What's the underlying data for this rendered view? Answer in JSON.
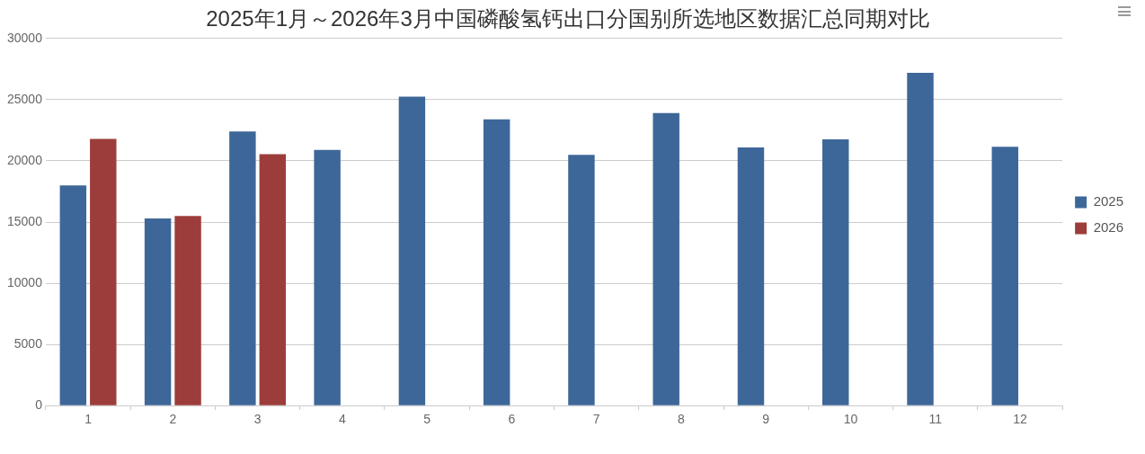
{
  "chart_data": {
    "type": "bar",
    "title": "2025年1月～2026年3月中国磷酸氢钙出口分国别所选地区数据汇总同期对比",
    "categories": [
      "1",
      "2",
      "3",
      "4",
      "5",
      "6",
      "7",
      "8",
      "9",
      "10",
      "11",
      "12"
    ],
    "series": [
      {
        "name": "2025",
        "color": "#3e6799",
        "values": [
          18000,
          15300,
          22400,
          20900,
          25250,
          23400,
          20500,
          23900,
          21100,
          21750,
          27200,
          21150
        ]
      },
      {
        "name": "2026",
        "color": "#9c3d3b",
        "values": [
          21800,
          15500,
          20550,
          null,
          null,
          null,
          null,
          null,
          null,
          null,
          null,
          null
        ]
      }
    ],
    "ylim": [
      0,
      30000
    ],
    "yticks": [
      0,
      5000,
      10000,
      15000,
      20000,
      25000,
      30000
    ],
    "grid": "y",
    "legend": "right"
  }
}
